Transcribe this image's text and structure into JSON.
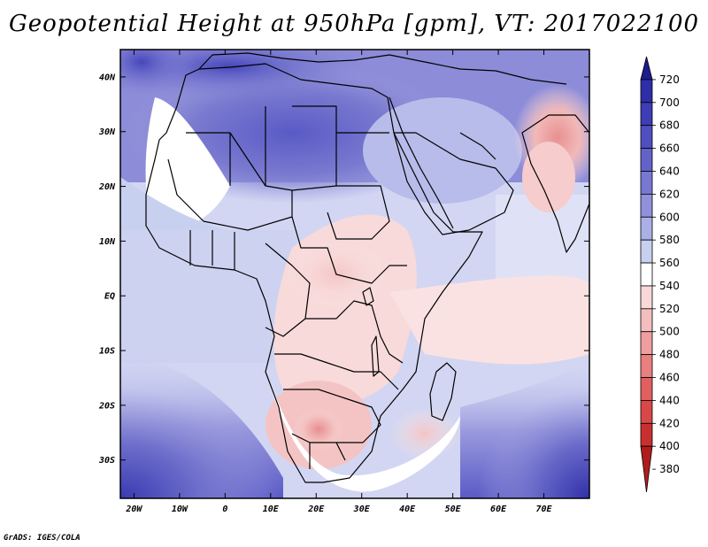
{
  "title": "Geopotential Height at 950hPa [gpm], VT: 2017022100",
  "credit": "GrADS: IGES/COLA",
  "map": {
    "lon_range": [
      -23,
      80
    ],
    "lat_range": [
      -37,
      45
    ],
    "x_ticks": [
      "20W",
      "10W",
      "0",
      "10E",
      "20E",
      "30E",
      "40E",
      "50E",
      "60E",
      "70E"
    ],
    "y_ticks": [
      "40N",
      "30N",
      "20N",
      "10N",
      "EQ",
      "10S",
      "20S",
      "30S"
    ]
  },
  "colorbar": {
    "levels": [
      "720",
      "700",
      "680",
      "660",
      "640",
      "620",
      "600",
      "580",
      "560",
      "540",
      "520",
      "500",
      "480",
      "460",
      "440",
      "420",
      "400",
      "380"
    ],
    "colors": [
      "#1c1c8c",
      "#2e2ea6",
      "#3d3db4",
      "#4f4fc0",
      "#6262c8",
      "#7878d2",
      "#9090dc",
      "#aab0e6",
      "#c8d0f0",
      "#ffffff",
      "#f8d8d8",
      "#f4bebe",
      "#ee9e9e",
      "#e88080",
      "#e06060",
      "#d84848",
      "#c83030",
      "#b01c1c"
    ]
  }
}
